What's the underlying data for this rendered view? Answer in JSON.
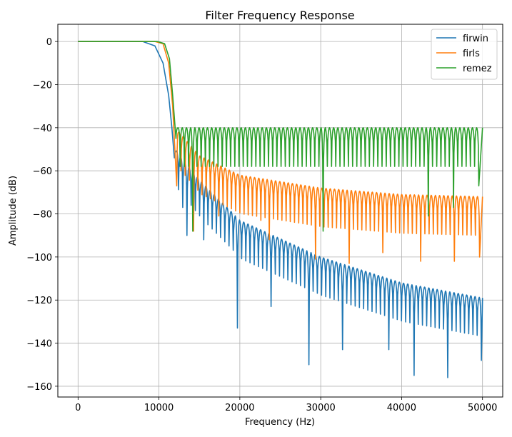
{
  "chart_data": {
    "type": "line",
    "title": "Filter Frequency Response",
    "xlabel": "Frequency (Hz)",
    "ylabel": "Amplitude (dB)",
    "xlim": [
      -2500,
      52500
    ],
    "ylim": [
      -165,
      8
    ],
    "xticks": [
      0,
      10000,
      20000,
      30000,
      40000,
      50000
    ],
    "xtick_labels": [
      "0",
      "10000",
      "20000",
      "30000",
      "40000",
      "50000"
    ],
    "yticks": [
      0,
      -20,
      -40,
      -60,
      -80,
      -100,
      -120,
      -140,
      -160
    ],
    "ytick_labels": [
      "0",
      "−20",
      "−40",
      "−60",
      "−80",
      "−100",
      "−120",
      "−140",
      "−160"
    ],
    "grid": true,
    "legend_position": "top-right",
    "series": [
      {
        "name": "firwin",
        "color": "#1f77b4",
        "passband": {
          "x": [
            0,
            8000,
            9500,
            10500,
            11200,
            11600,
            11900
          ],
          "y": [
            0,
            0,
            -2,
            -10,
            -25,
            -40,
            -54
          ]
        },
        "lobes": {
          "start": 11900,
          "end": 50000,
          "spacing": 520,
          "envelope": [
            [
              12000,
              -50
            ],
            [
              15000,
              -64
            ],
            [
              20000,
              -83
            ],
            [
              30000,
              -100
            ],
            [
              40000,
              -112
            ],
            [
              50000,
              -119
            ]
          ],
          "nulls": [
            [
              11900,
              -54
            ],
            [
              12800,
              -77
            ],
            [
              13700,
              -90
            ],
            [
              15300,
              -92
            ],
            [
              19500,
              -133
            ],
            [
              23600,
              -123
            ],
            [
              28500,
              -150
            ],
            [
              32500,
              -143
            ],
            [
              38500,
              -143
            ],
            [
              41500,
              -155
            ],
            [
              45500,
              -156
            ],
            [
              49800,
              -148
            ]
          ]
        }
      },
      {
        "name": "firls",
        "color": "#ff7f0e",
        "passband": {
          "x": [
            0,
            8000,
            9500,
            10500,
            11200,
            11700,
            12200
          ],
          "y": [
            0,
            0,
            0,
            -1,
            -10,
            -30,
            -67
          ]
        },
        "lobes": {
          "start": 12200,
          "end": 50000,
          "spacing": 520,
          "envelope": [
            [
              12500,
              -42
            ],
            [
              15000,
              -53
            ],
            [
              20000,
              -62
            ],
            [
              30000,
              -68
            ],
            [
              40000,
              -71
            ],
            [
              50000,
              -72
            ]
          ],
          "nulls": [
            [
              12200,
              -67
            ],
            [
              14400,
              -88
            ],
            [
              17600,
              -81
            ],
            [
              22700,
              -83
            ],
            [
              23600,
              -92
            ],
            [
              29500,
              -101
            ],
            [
              33500,
              -103
            ],
            [
              37500,
              -98
            ],
            [
              42500,
              -102
            ],
            [
              46500,
              -102
            ],
            [
              49600,
              -100
            ]
          ]
        }
      },
      {
        "name": "remez",
        "color": "#2ca02c",
        "passband": {
          "x": [
            0,
            8000,
            9800,
            10700,
            11300,
            11700,
            12100
          ],
          "y": [
            0,
            0,
            0,
            -1,
            -8,
            -25,
            -45
          ]
        },
        "lobes": {
          "start": 12100,
          "end": 50000,
          "spacing": 520,
          "envelope": [
            [
              12100,
              -40
            ],
            [
              50000,
              -40
            ]
          ],
          "nulls": [
            [
              14400,
              -88
            ],
            [
              30400,
              -88
            ],
            [
              43500,
              -81
            ],
            [
              46500,
              -77
            ],
            [
              49600,
              -67
            ]
          ]
        }
      }
    ]
  }
}
